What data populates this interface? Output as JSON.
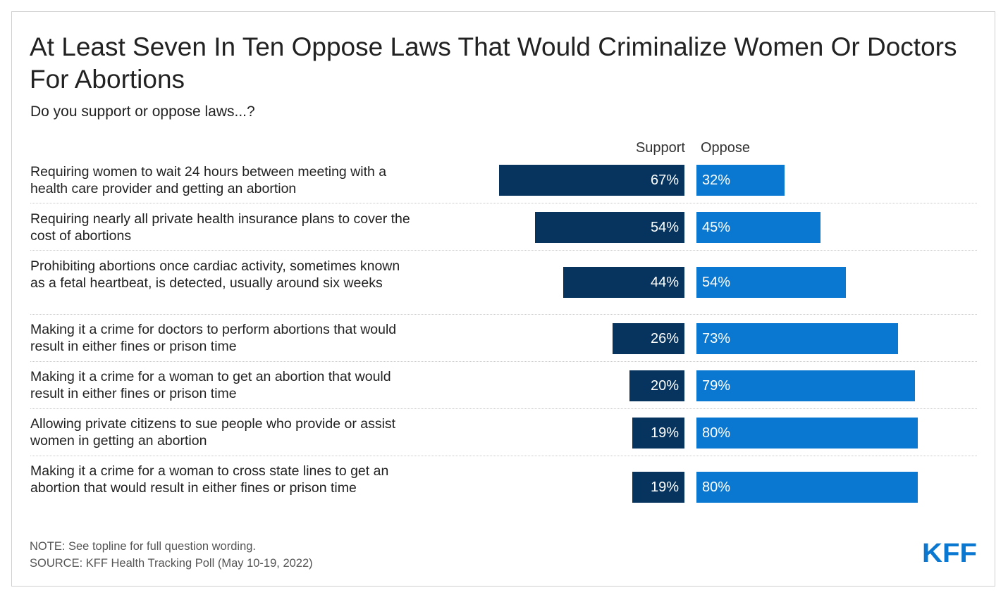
{
  "title": "At Least Seven In Ten Oppose Laws That Would Criminalize Women Or Doctors For Abortions",
  "subtitle": "Do you support or oppose laws...?",
  "note": "NOTE: See topline for full question wording.",
  "source": "SOURCE: KFF Health Tracking Poll (May 10-19, 2022)",
  "logo_text": "KFF",
  "colors": {
    "support": "#06345e",
    "oppose": "#0a78d0",
    "logo": "#0a78d0"
  },
  "chart_data": {
    "type": "bar",
    "orientation": "horizontal-diverging",
    "categories": [
      "Requiring women to wait 24 hours between meeting with a health care provider and getting an abortion",
      "Requiring nearly all private health insurance plans to cover the cost of abortions",
      "Prohibiting abortions once cardiac activity, sometimes known as a fetal heartbeat, is detected, usually around six weeks",
      "Making it a crime for doctors to perform abortions that would result in either fines or prison time",
      "Making it a crime for a woman to get an abortion that would result in either fines or prison time",
      "Allowing private citizens to sue people who provide or assist women in getting an abortion",
      "Making it a crime for a woman to cross state lines to get an abortion that would result in either fines or prison time"
    ],
    "series": [
      {
        "name": "Support",
        "values": [
          67,
          54,
          44,
          26,
          20,
          19,
          19
        ],
        "labels": [
          "67%",
          "54%",
          "44%",
          "26%",
          "20%",
          "19%",
          "19%"
        ]
      },
      {
        "name": "Oppose",
        "values": [
          32,
          45,
          54,
          73,
          79,
          80,
          80
        ],
        "labels": [
          "32%",
          "45%",
          "54%",
          "73%",
          "79%",
          "80%",
          "80%"
        ]
      }
    ],
    "unit": "%",
    "legend": "top, above bars"
  }
}
